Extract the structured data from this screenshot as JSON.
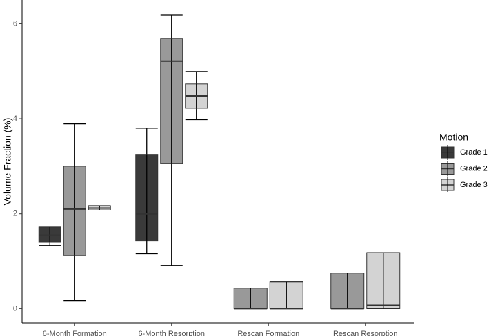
{
  "chart_data": {
    "type": "box",
    "y_label": "Volume Fraction (%)",
    "categories": [
      "6-Month Formation",
      "6-Month Resorption",
      "Rescan Formation",
      "Rescan Resorption"
    ],
    "ylim": [
      -0.3,
      6.5
    ],
    "yticks": [
      0,
      2,
      4,
      6
    ],
    "legend_title": "Motion",
    "legend_position": "right",
    "series": [
      {
        "name": "Grade 1",
        "color": "#3a3a3a",
        "boxes": [
          {
            "min": 1.33,
            "q1": 1.4,
            "median": 1.55,
            "q3": 1.72,
            "max": 1.72
          },
          {
            "min": 1.16,
            "q1": 1.42,
            "median": 2.0,
            "q3": 3.25,
            "max": 3.8
          },
          null,
          null
        ]
      },
      {
        "name": "Grade 2",
        "color": "#999999",
        "boxes": [
          {
            "min": 0.17,
            "q1": 1.12,
            "median": 2.1,
            "q3": 3.0,
            "max": 3.89
          },
          {
            "min": 0.91,
            "q1": 3.06,
            "median": 5.21,
            "q3": 5.69,
            "max": 6.18
          },
          {
            "min": 0,
            "q1": 0,
            "median": 0,
            "q3": 0.43,
            "max": 0.43
          },
          {
            "min": 0,
            "q1": 0,
            "median": 0,
            "q3": 0.75,
            "max": 0.75
          }
        ]
      },
      {
        "name": "Grade 3",
        "color": "#d3d3d3",
        "boxes": [
          {
            "min": 2.08,
            "q1": 2.08,
            "median": 2.12,
            "q3": 2.17,
            "max": 2.17
          },
          {
            "min": 3.98,
            "q1": 4.22,
            "median": 4.48,
            "q3": 4.73,
            "max": 4.99
          },
          {
            "min": 0,
            "q1": 0,
            "median": 0,
            "q3": 0.56,
            "max": 0.56
          },
          {
            "min": 0,
            "q1": 0,
            "median": 0.07,
            "q3": 1.18,
            "max": 1.18
          }
        ]
      }
    ]
  }
}
